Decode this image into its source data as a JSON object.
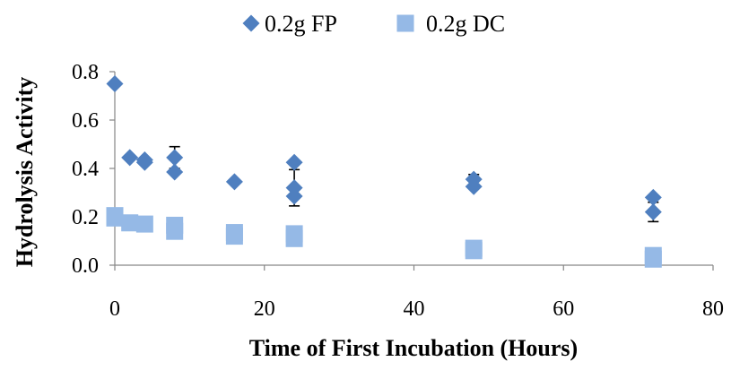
{
  "chart_data": {
    "type": "scatter",
    "title": "",
    "xlabel": "Time of First Incubation (Hours)",
    "ylabel": "Hydrolysis Activity",
    "xlim": [
      0,
      80
    ],
    "ylim": [
      0,
      0.8
    ],
    "xticks": [
      0,
      20,
      40,
      60,
      80
    ],
    "xtick_labels": [
      "0",
      "20",
      "40",
      "60",
      "80"
    ],
    "yticks": [
      0,
      0.2,
      0.4,
      0.6,
      0.8
    ],
    "ytick_labels": [
      "0.0",
      "0.2",
      "0.4",
      "0.6",
      "0.8"
    ],
    "grid": false,
    "legend_position": "top",
    "series": [
      {
        "name": "0.2g FP",
        "marker": "diamond",
        "color": "#4F7FBF",
        "points": [
          {
            "x": 0,
            "y": 0.75
          },
          {
            "x": 2,
            "y": 0.445
          },
          {
            "x": 4,
            "y": 0.435
          },
          {
            "x": 4,
            "y": 0.425
          },
          {
            "x": 8,
            "y": 0.445,
            "err": 0.045
          },
          {
            "x": 8,
            "y": 0.385
          },
          {
            "x": 16,
            "y": 0.345
          },
          {
            "x": 24,
            "y": 0.425
          },
          {
            "x": 24,
            "y": 0.32,
            "err": 0.075
          },
          {
            "x": 24,
            "y": 0.285
          },
          {
            "x": 48,
            "y": 0.355,
            "err": 0.02
          },
          {
            "x": 48,
            "y": 0.325
          },
          {
            "x": 72,
            "y": 0.28
          },
          {
            "x": 72,
            "y": 0.22,
            "err": 0.04
          }
        ]
      },
      {
        "name": "0.2g DC",
        "marker": "square",
        "color": "#95B9E6",
        "points": [
          {
            "x": 0,
            "y": 0.205
          },
          {
            "x": 0,
            "y": 0.195
          },
          {
            "x": 2,
            "y": 0.175
          },
          {
            "x": 4,
            "y": 0.17
          },
          {
            "x": 8,
            "y": 0.165
          },
          {
            "x": 8,
            "y": 0.14
          },
          {
            "x": 16,
            "y": 0.135
          },
          {
            "x": 16,
            "y": 0.12
          },
          {
            "x": 24,
            "y": 0.13
          },
          {
            "x": 24,
            "y": 0.11
          },
          {
            "x": 48,
            "y": 0.07
          },
          {
            "x": 48,
            "y": 0.06
          },
          {
            "x": 72,
            "y": 0.04
          },
          {
            "x": 72,
            "y": 0.025
          }
        ]
      }
    ]
  }
}
